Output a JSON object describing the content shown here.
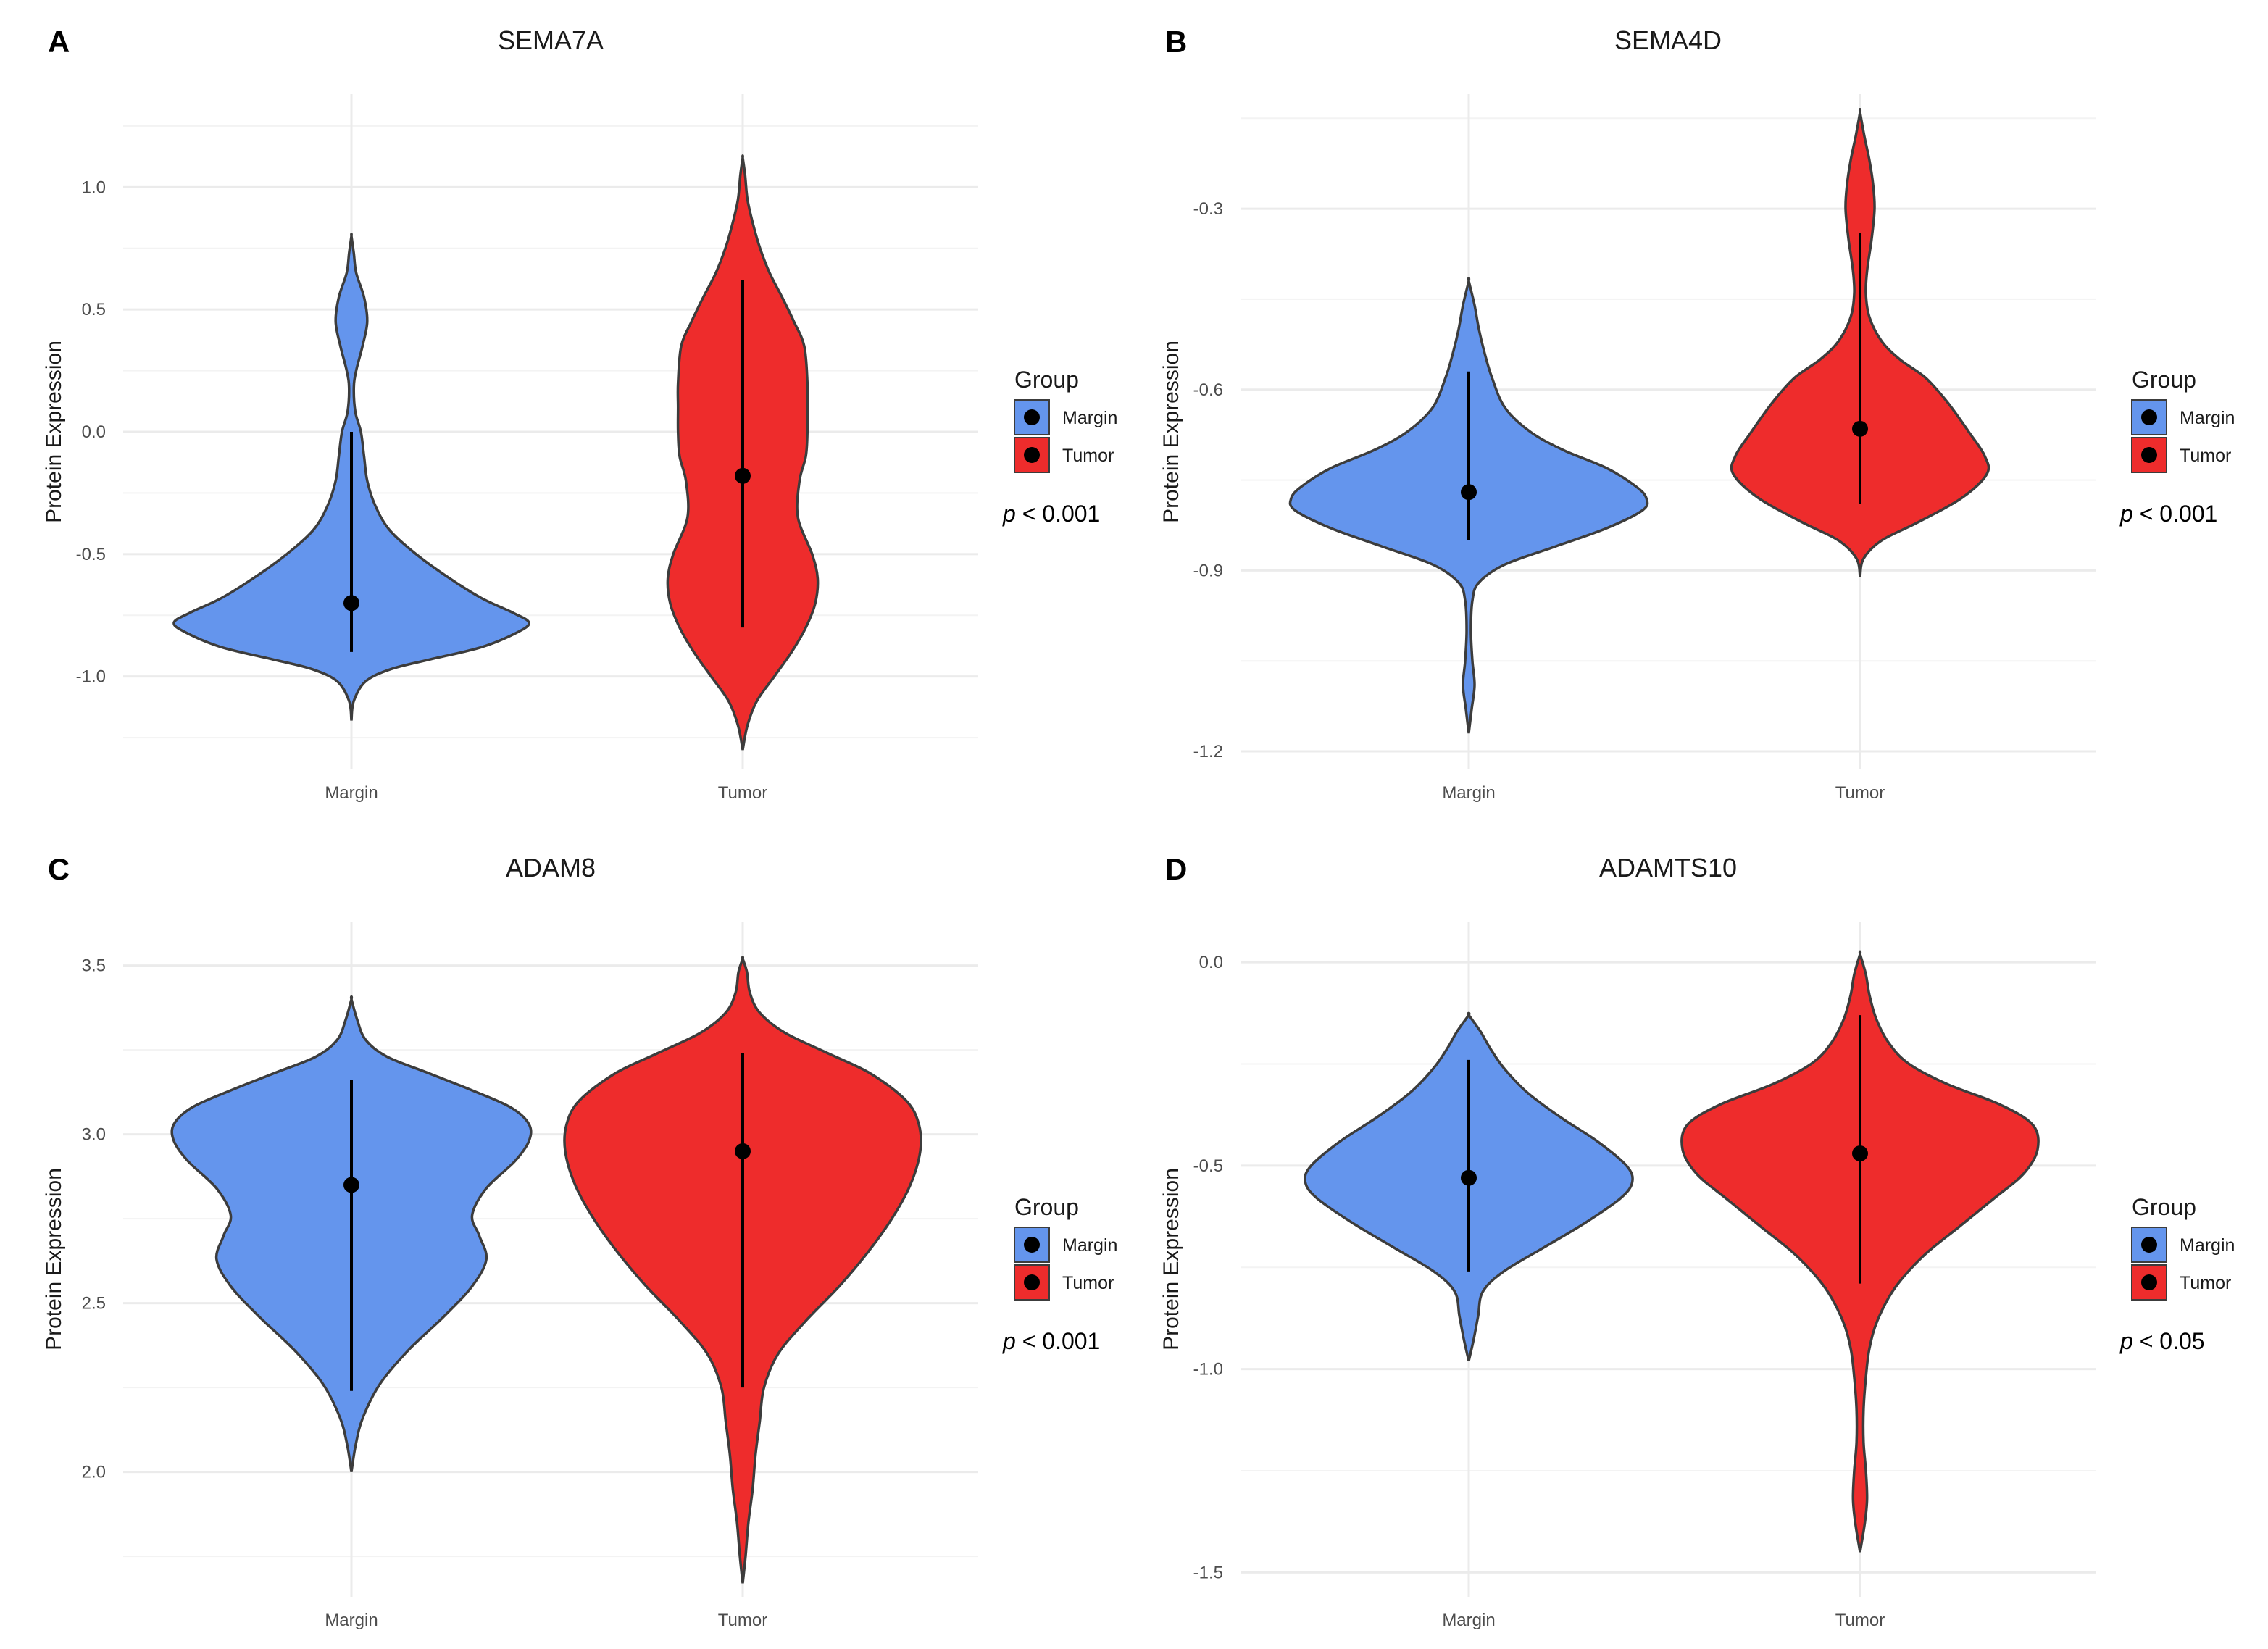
{
  "chart_data": [
    {
      "panel": "A",
      "type": "violin",
      "title": "SEMA7A",
      "ylabel": "Protein Expression",
      "categories": [
        "Margin",
        "Tumor"
      ],
      "yticks": [
        1.0,
        0.5,
        0.0,
        -0.5,
        -1.0
      ],
      "ytick_labels": [
        "1.0",
        "0.5",
        "0.0",
        "-0.5",
        "-1.0"
      ],
      "ylim": [
        -1.38,
        1.38
      ],
      "legend": {
        "title": "Group",
        "entries": [
          "Margin",
          "Tumor"
        ]
      },
      "pvalue": {
        "p": "p",
        "rest": " < 0.001"
      },
      "series": [
        {
          "group": "Margin",
          "color": "#6495ED",
          "point": -0.7,
          "range": [
            -0.9,
            0.0
          ],
          "density": [
            [
              -1.18,
              0
            ],
            [
              -1.1,
              3
            ],
            [
              -1.02,
              18
            ],
            [
              -0.97,
              50
            ],
            [
              -0.93,
              100
            ],
            [
              -0.88,
              165
            ],
            [
              -0.82,
              210
            ],
            [
              -0.78,
              225
            ],
            [
              -0.74,
              205
            ],
            [
              -0.68,
              165
            ],
            [
              -0.6,
              125
            ],
            [
              -0.5,
              82
            ],
            [
              -0.4,
              48
            ],
            [
              -0.3,
              30
            ],
            [
              -0.2,
              20
            ],
            [
              -0.1,
              16
            ],
            [
              0.0,
              12
            ],
            [
              0.08,
              5
            ],
            [
              0.18,
              3
            ],
            [
              0.25,
              6
            ],
            [
              0.35,
              14
            ],
            [
              0.45,
              20
            ],
            [
              0.55,
              16
            ],
            [
              0.65,
              6
            ],
            [
              0.73,
              3
            ],
            [
              0.8,
              0
            ]
          ]
        },
        {
          "group": "Tumor",
          "color": "#EE2C2C",
          "point": -0.18,
          "range": [
            -0.8,
            0.62
          ],
          "density": [
            [
              -1.3,
              0
            ],
            [
              -1.2,
              6
            ],
            [
              -1.1,
              18
            ],
            [
              -1.0,
              40
            ],
            [
              -0.9,
              62
            ],
            [
              -0.8,
              80
            ],
            [
              -0.7,
              92
            ],
            [
              -0.6,
              95
            ],
            [
              -0.5,
              88
            ],
            [
              -0.35,
              70
            ],
            [
              -0.2,
              72
            ],
            [
              -0.1,
              80
            ],
            [
              0.0,
              82
            ],
            [
              0.1,
              82
            ],
            [
              0.2,
              82
            ],
            [
              0.35,
              78
            ],
            [
              0.45,
              65
            ],
            [
              0.55,
              50
            ],
            [
              0.65,
              34
            ],
            [
              0.75,
              22
            ],
            [
              0.85,
              13
            ],
            [
              0.95,
              6
            ],
            [
              1.05,
              3
            ],
            [
              1.12,
              0
            ]
          ]
        }
      ]
    },
    {
      "panel": "B",
      "type": "violin",
      "title": "SEMA4D",
      "ylabel": "Protein Expression",
      "categories": [
        "Margin",
        "Tumor"
      ],
      "yticks": [
        -0.3,
        -0.6,
        -0.9,
        -1.2
      ],
      "ytick_labels": [
        "-0.3",
        "-0.6",
        "-0.9",
        "-1.2"
      ],
      "ylim": [
        -1.23,
        -0.11
      ],
      "legend": {
        "title": "Group",
        "entries": [
          "Margin",
          "Tumor"
        ]
      },
      "pvalue": {
        "p": "p",
        "rest": " < 0.001"
      },
      "series": [
        {
          "group": "Margin",
          "color": "#6495ED",
          "point": -0.77,
          "range": [
            -0.85,
            -0.57
          ],
          "density": [
            [
              -1.17,
              0
            ],
            [
              -1.13,
              4
            ],
            [
              -1.09,
              8
            ],
            [
              -1.05,
              5
            ],
            [
              -1.0,
              3
            ],
            [
              -0.95,
              5
            ],
            [
              -0.92,
              14
            ],
            [
              -0.89,
              50
            ],
            [
              -0.86,
              120
            ],
            [
              -0.83,
              190
            ],
            [
              -0.8,
              240
            ],
            [
              -0.78,
              245
            ],
            [
              -0.76,
              230
            ],
            [
              -0.73,
              190
            ],
            [
              -0.7,
              130
            ],
            [
              -0.67,
              85
            ],
            [
              -0.63,
              50
            ],
            [
              -0.58,
              32
            ],
            [
              -0.54,
              22
            ],
            [
              -0.5,
              14
            ],
            [
              -0.46,
              8
            ],
            [
              -0.42,
              0
            ]
          ]
        },
        {
          "group": "Tumor",
          "color": "#EE2C2C",
          "point": -0.665,
          "range": [
            -0.79,
            -0.34
          ],
          "density": [
            [
              -0.91,
              0
            ],
            [
              -0.88,
              5
            ],
            [
              -0.85,
              30
            ],
            [
              -0.82,
              80
            ],
            [
              -0.78,
              140
            ],
            [
              -0.74,
              175
            ],
            [
              -0.71,
              172
            ],
            [
              -0.67,
              150
            ],
            [
              -0.62,
              120
            ],
            [
              -0.58,
              90
            ],
            [
              -0.55,
              55
            ],
            [
              -0.52,
              30
            ],
            [
              -0.48,
              13
            ],
            [
              -0.44,
              8
            ],
            [
              -0.4,
              10
            ],
            [
              -0.35,
              16
            ],
            [
              -0.3,
              20
            ],
            [
              -0.26,
              18
            ],
            [
              -0.22,
              13
            ],
            [
              -0.18,
              6
            ],
            [
              -0.14,
              0
            ]
          ]
        }
      ]
    },
    {
      "panel": "C",
      "type": "violin",
      "title": "ADAM8",
      "ylabel": "Protein Expression",
      "categories": [
        "Margin",
        "Tumor"
      ],
      "yticks": [
        3.5,
        3.0,
        2.5,
        2.0
      ],
      "ytick_labels": [
        "3.5",
        "3.0",
        "2.5",
        "2.0"
      ],
      "ylim": [
        1.63,
        3.63
      ],
      "legend": {
        "title": "Group",
        "entries": [
          "Margin",
          "Tumor"
        ]
      },
      "pvalue": {
        "p": "p",
        "rest": " < 0.001"
      },
      "series": [
        {
          "group": "Margin",
          "color": "#6495ED",
          "point": 2.85,
          "range": [
            2.24,
            3.16
          ],
          "density": [
            [
              2.0,
              0
            ],
            [
              2.08,
              3
            ],
            [
              2.16,
              8
            ],
            [
              2.26,
              20
            ],
            [
              2.36,
              40
            ],
            [
              2.46,
              65
            ],
            [
              2.55,
              85
            ],
            [
              2.63,
              95
            ],
            [
              2.7,
              90
            ],
            [
              2.76,
              85
            ],
            [
              2.84,
              95
            ],
            [
              2.92,
              115
            ],
            [
              2.98,
              125
            ],
            [
              3.03,
              125
            ],
            [
              3.08,
              112
            ],
            [
              3.13,
              85
            ],
            [
              3.18,
              55
            ],
            [
              3.23,
              25
            ],
            [
              3.28,
              10
            ],
            [
              3.34,
              4
            ],
            [
              3.4,
              0
            ]
          ]
        },
        {
          "group": "Tumor",
          "color": "#EE2C2C",
          "point": 2.95,
          "range": [
            2.25,
            3.24
          ],
          "density": [
            [
              1.67,
              0
            ],
            [
              1.75,
              2
            ],
            [
              1.85,
              4
            ],
            [
              1.95,
              7
            ],
            [
              2.05,
              9
            ],
            [
              2.15,
              12
            ],
            [
              2.25,
              15
            ],
            [
              2.35,
              25
            ],
            [
              2.45,
              45
            ],
            [
              2.55,
              68
            ],
            [
              2.65,
              88
            ],
            [
              2.75,
              105
            ],
            [
              2.85,
              118
            ],
            [
              2.95,
              125
            ],
            [
              3.03,
              124
            ],
            [
              3.1,
              115
            ],
            [
              3.18,
              90
            ],
            [
              3.24,
              60
            ],
            [
              3.3,
              30
            ],
            [
              3.36,
              12
            ],
            [
              3.42,
              5
            ],
            [
              3.48,
              3
            ],
            [
              3.52,
              0
            ]
          ]
        }
      ]
    },
    {
      "panel": "D",
      "type": "violin",
      "title": "ADAMTS10",
      "ylabel": "Protein Expression",
      "categories": [
        "Margin",
        "Tumor"
      ],
      "yticks": [
        0.0,
        -0.5,
        -1.0,
        -1.5
      ],
      "ytick_labels": [
        "0.0",
        "-0.5",
        "-1.0",
        "-1.5"
      ],
      "ylim": [
        -1.56,
        0.1
      ],
      "legend": {
        "title": "Group",
        "entries": [
          "Margin",
          "Tumor"
        ]
      },
      "pvalue": {
        "p": "p",
        "rest": " < 0.05"
      },
      "series": [
        {
          "group": "Margin",
          "color": "#6495ED",
          "point": -0.53,
          "range": [
            -0.76,
            -0.24
          ],
          "density": [
            [
              -0.98,
              0
            ],
            [
              -0.93,
              4
            ],
            [
              -0.87,
              8
            ],
            [
              -0.81,
              12
            ],
            [
              -0.76,
              30
            ],
            [
              -0.7,
              65
            ],
            [
              -0.64,
              100
            ],
            [
              -0.58,
              130
            ],
            [
              -0.54,
              140
            ],
            [
              -0.5,
              135
            ],
            [
              -0.44,
              110
            ],
            [
              -0.38,
              78
            ],
            [
              -0.32,
              50
            ],
            [
              -0.26,
              30
            ],
            [
              -0.21,
              18
            ],
            [
              -0.17,
              10
            ],
            [
              -0.13,
              0
            ]
          ]
        },
        {
          "group": "Tumor",
          "color": "#EE2C2C",
          "point": -0.47,
          "range": [
            -0.79,
            -0.13
          ],
          "density": [
            [
              -1.45,
              0
            ],
            [
              -1.38,
              4
            ],
            [
              -1.32,
              6
            ],
            [
              -1.25,
              5
            ],
            [
              -1.18,
              3
            ],
            [
              -1.1,
              3
            ],
            [
              -1.02,
              5
            ],
            [
              -0.95,
              8
            ],
            [
              -0.88,
              15
            ],
            [
              -0.8,
              30
            ],
            [
              -0.72,
              55
            ],
            [
              -0.65,
              85
            ],
            [
              -0.58,
              115
            ],
            [
              -0.52,
              140
            ],
            [
              -0.46,
              152
            ],
            [
              -0.4,
              148
            ],
            [
              -0.35,
              120
            ],
            [
              -0.3,
              75
            ],
            [
              -0.25,
              42
            ],
            [
              -0.2,
              25
            ],
            [
              -0.14,
              14
            ],
            [
              -0.08,
              8
            ],
            [
              -0.03,
              5
            ],
            [
              0.02,
              0
            ]
          ]
        }
      ]
    }
  ]
}
